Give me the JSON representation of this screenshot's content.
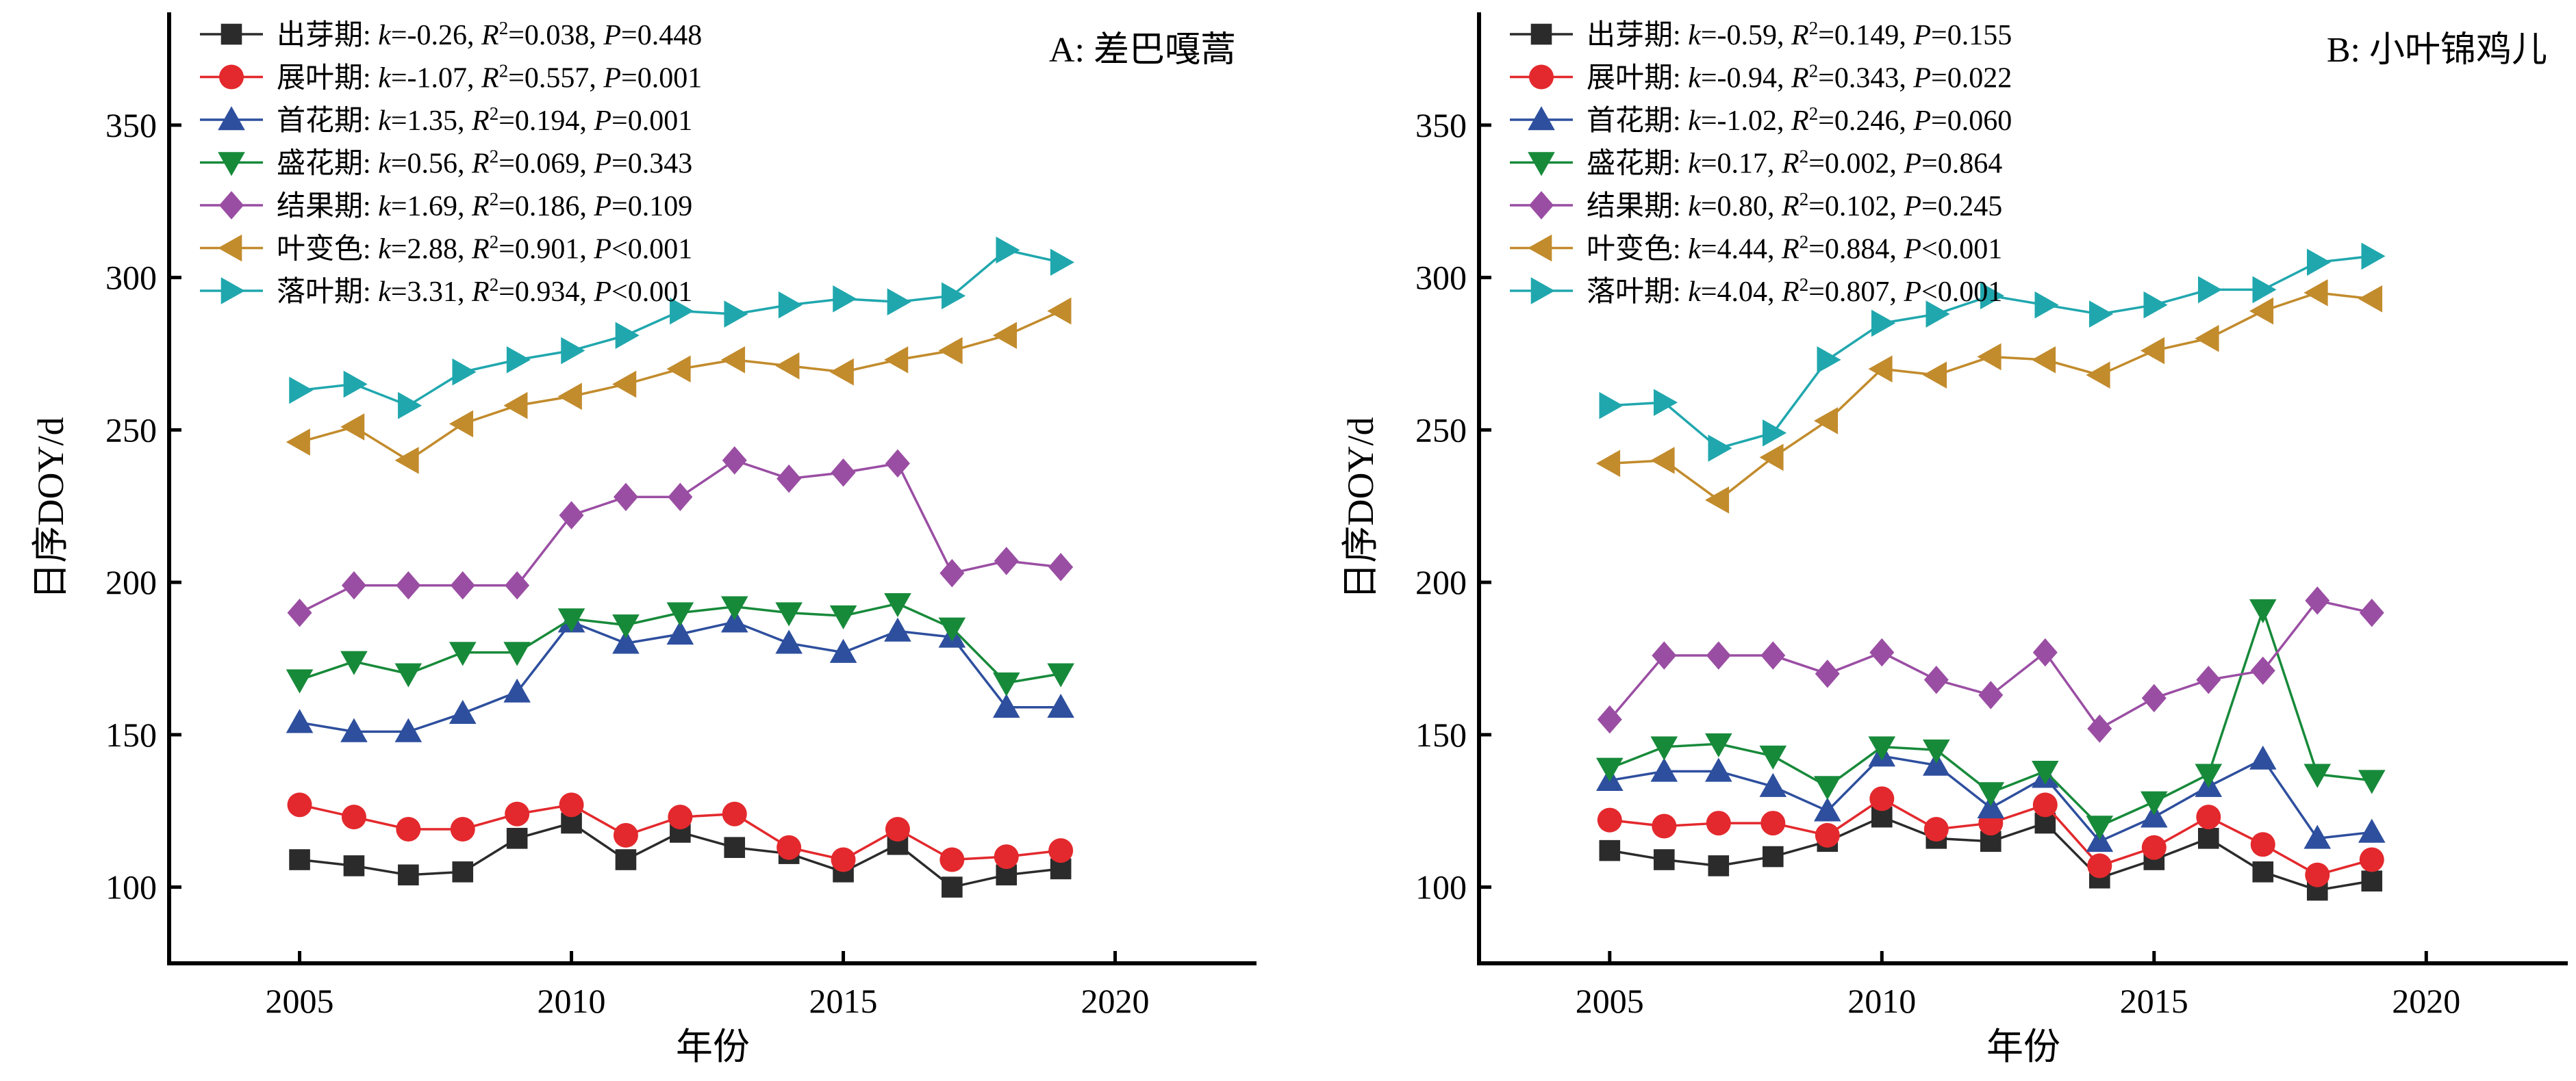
{
  "chart_data": [
    {
      "type": "line",
      "panel_label": "A: 差巴嘎蒿",
      "xlabel": "年份",
      "ylabel": "日序DOY/d",
      "xlim": [
        2002.6,
        2022.6
      ],
      "ylim": [
        75,
        387
      ],
      "xticks": [
        2005,
        2010,
        2015,
        2020
      ],
      "yticks": [
        100,
        150,
        200,
        250,
        300,
        350
      ],
      "grid": false,
      "legend_position": "top-left",
      "x": [
        2005,
        2006,
        2007,
        2008,
        2009,
        2010,
        2011,
        2012,
        2013,
        2014,
        2015,
        2016,
        2017,
        2018,
        2019
      ],
      "series": [
        {
          "name": "出芽期",
          "stats": {
            "k": "-0.26",
            "r2": "0.038",
            "p_op": "=",
            "p": "0.448"
          },
          "color": "#2b2b2b",
          "marker": "square",
          "values": [
            109,
            107,
            104,
            105,
            116,
            121,
            109,
            118,
            113,
            111,
            105,
            114,
            100,
            104,
            106
          ]
        },
        {
          "name": "展叶期",
          "stats": {
            "k": "-1.07",
            "r2": "0.557",
            "p_op": "=",
            "p": "0.001"
          },
          "color": "#e3292d",
          "marker": "circle",
          "values": [
            127,
            123,
            119,
            119,
            124,
            127,
            117,
            123,
            124,
            113,
            109,
            119,
            109,
            110,
            112
          ]
        },
        {
          "name": "首花期",
          "stats": {
            "k": "1.35",
            "r2": "0.194",
            "p_op": "=",
            "p": "0.001"
          },
          "color": "#2e4f9e",
          "marker": "triangle-up",
          "values": [
            154,
            151,
            151,
            157,
            164,
            187,
            180,
            183,
            187,
            180,
            177,
            184,
            182,
            159,
            159
          ]
        },
        {
          "name": "盛花期",
          "stats": {
            "k": "0.56",
            "r2": "0.069",
            "p_op": "=",
            "p": "0.343"
          },
          "color": "#178a3a",
          "marker": "triangle-down",
          "values": [
            168,
            174,
            170,
            177,
            177,
            188,
            186,
            190,
            192,
            190,
            189,
            193,
            185,
            167,
            170
          ]
        },
        {
          "name": "结果期",
          "stats": {
            "k": "1.69",
            "r2": "0.186",
            "p_op": "=",
            "p": "0.109"
          },
          "color": "#9a4ea3",
          "marker": "diamond",
          "values": [
            190,
            199,
            199,
            199,
            199,
            222,
            228,
            228,
            240,
            234,
            236,
            239,
            203,
            207,
            205
          ]
        },
        {
          "name": "叶变色",
          "stats": {
            "k": "2.88",
            "r2": "0.901",
            "p_op": "<",
            "p": "0.001"
          },
          "color": "#c28b2c",
          "marker": "triangle-left",
          "values": [
            246,
            251,
            240,
            252,
            258,
            261,
            265,
            270,
            273,
            271,
            269,
            273,
            276,
            281,
            289
          ]
        },
        {
          "name": "落叶期",
          "stats": {
            "k": "3.31",
            "r2": "0.934",
            "p_op": "<",
            "p": "0.001"
          },
          "color": "#20a7ae",
          "marker": "triangle-right",
          "values": [
            263,
            265,
            258,
            269,
            273,
            276,
            281,
            289,
            288,
            291,
            293,
            292,
            294,
            309,
            305
          ]
        }
      ]
    },
    {
      "type": "line",
      "panel_label": "B: 小叶锦鸡儿",
      "xlabel": "年份",
      "ylabel": "日序DOY/d",
      "xlim": [
        2002.6,
        2022.6
      ],
      "ylim": [
        75,
        387
      ],
      "xticks": [
        2005,
        2010,
        2015,
        2020
      ],
      "yticks": [
        100,
        150,
        200,
        250,
        300,
        350
      ],
      "grid": false,
      "legend_position": "top-left",
      "x": [
        2005,
        2006,
        2007,
        2008,
        2009,
        2010,
        2011,
        2012,
        2013,
        2014,
        2015,
        2016,
        2017,
        2018,
        2019
      ],
      "series": [
        {
          "name": "出芽期",
          "stats": {
            "k": "-0.59",
            "r2": "0.149",
            "p_op": "=",
            "p": "0.155"
          },
          "color": "#2b2b2b",
          "marker": "square",
          "values": [
            112,
            109,
            107,
            110,
            115,
            123,
            116,
            115,
            121,
            103,
            109,
            116,
            105,
            99,
            102
          ]
        },
        {
          "name": "展叶期",
          "stats": {
            "k": "-0.94",
            "r2": "0.343",
            "p_op": "=",
            "p": "0.022"
          },
          "color": "#e3292d",
          "marker": "circle",
          "values": [
            122,
            120,
            121,
            121,
            117,
            129,
            119,
            121,
            127,
            107,
            113,
            123,
            114,
            104,
            109
          ]
        },
        {
          "name": "首花期",
          "stats": {
            "k": "-1.02",
            "r2": "0.246",
            "p_op": "=",
            "p": "0.060"
          },
          "color": "#2e4f9e",
          "marker": "triangle-up",
          "values": [
            135,
            138,
            138,
            133,
            125,
            143,
            140,
            126,
            136,
            115,
            123,
            133,
            142,
            116,
            118
          ]
        },
        {
          "name": "盛花期",
          "stats": {
            "k": "0.17",
            "r2": "0.002",
            "p_op": "=",
            "p": "0.864"
          },
          "color": "#178a3a",
          "marker": "triangle-down",
          "values": [
            139,
            146,
            147,
            143,
            133,
            146,
            145,
            131,
            138,
            120,
            128,
            137,
            191,
            137,
            135
          ]
        },
        {
          "name": "结果期",
          "stats": {
            "k": "0.80",
            "r2": "0.102",
            "p_op": "=",
            "p": "0.245"
          },
          "color": "#9a4ea3",
          "marker": "diamond",
          "values": [
            155,
            176,
            176,
            176,
            170,
            177,
            168,
            163,
            177,
            152,
            162,
            168,
            171,
            194,
            190
          ]
        },
        {
          "name": "叶变色",
          "stats": {
            "k": "4.44",
            "r2": "0.884",
            "p_op": "<",
            "p": "0.001"
          },
          "color": "#c28b2c",
          "marker": "triangle-left",
          "values": [
            239,
            240,
            227,
            241,
            253,
            270,
            268,
            274,
            273,
            268,
            276,
            280,
            289,
            295,
            293
          ]
        },
        {
          "name": "落叶期",
          "stats": {
            "k": "4.04",
            "r2": "0.807",
            "p_op": "<",
            "p": "0.001"
          },
          "color": "#20a7ae",
          "marker": "triangle-right",
          "values": [
            258,
            259,
            244,
            249,
            273,
            285,
            288,
            294,
            291,
            288,
            291,
            296,
            296,
            305,
            307
          ]
        }
      ]
    }
  ]
}
